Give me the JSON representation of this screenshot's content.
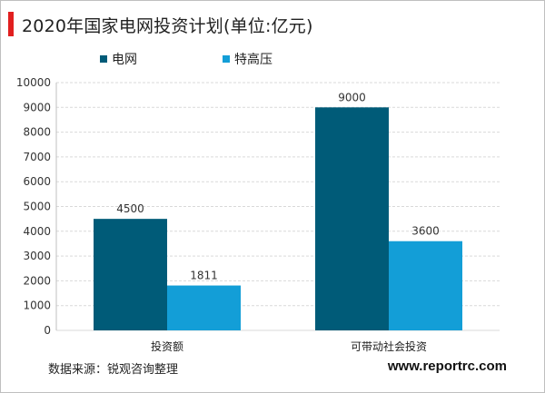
{
  "title": "2020年国家电网投资计划(单位:亿元)",
  "source": "数据来源：锐观咨询整理",
  "website": "www.reportrc.com",
  "colors": {
    "title_accent": "#e11f1f",
    "series_1": "#005b78",
    "series_2": "#139ed7"
  },
  "chart_data": {
    "type": "bar",
    "title": "2020年国家电网投资计划(单位:亿元)",
    "categories": [
      "投资额",
      "可带动社会投资"
    ],
    "series": [
      {
        "name": "电网",
        "values": [
          4500,
          9000
        ]
      },
      {
        "name": "特高压",
        "values": [
          1811,
          3600
        ]
      }
    ],
    "ylim": [
      0,
      10000
    ],
    "yticks": [
      0,
      1000,
      2000,
      3000,
      4000,
      5000,
      6000,
      7000,
      8000,
      9000,
      10000
    ],
    "grid": true,
    "legend": "top-left"
  }
}
